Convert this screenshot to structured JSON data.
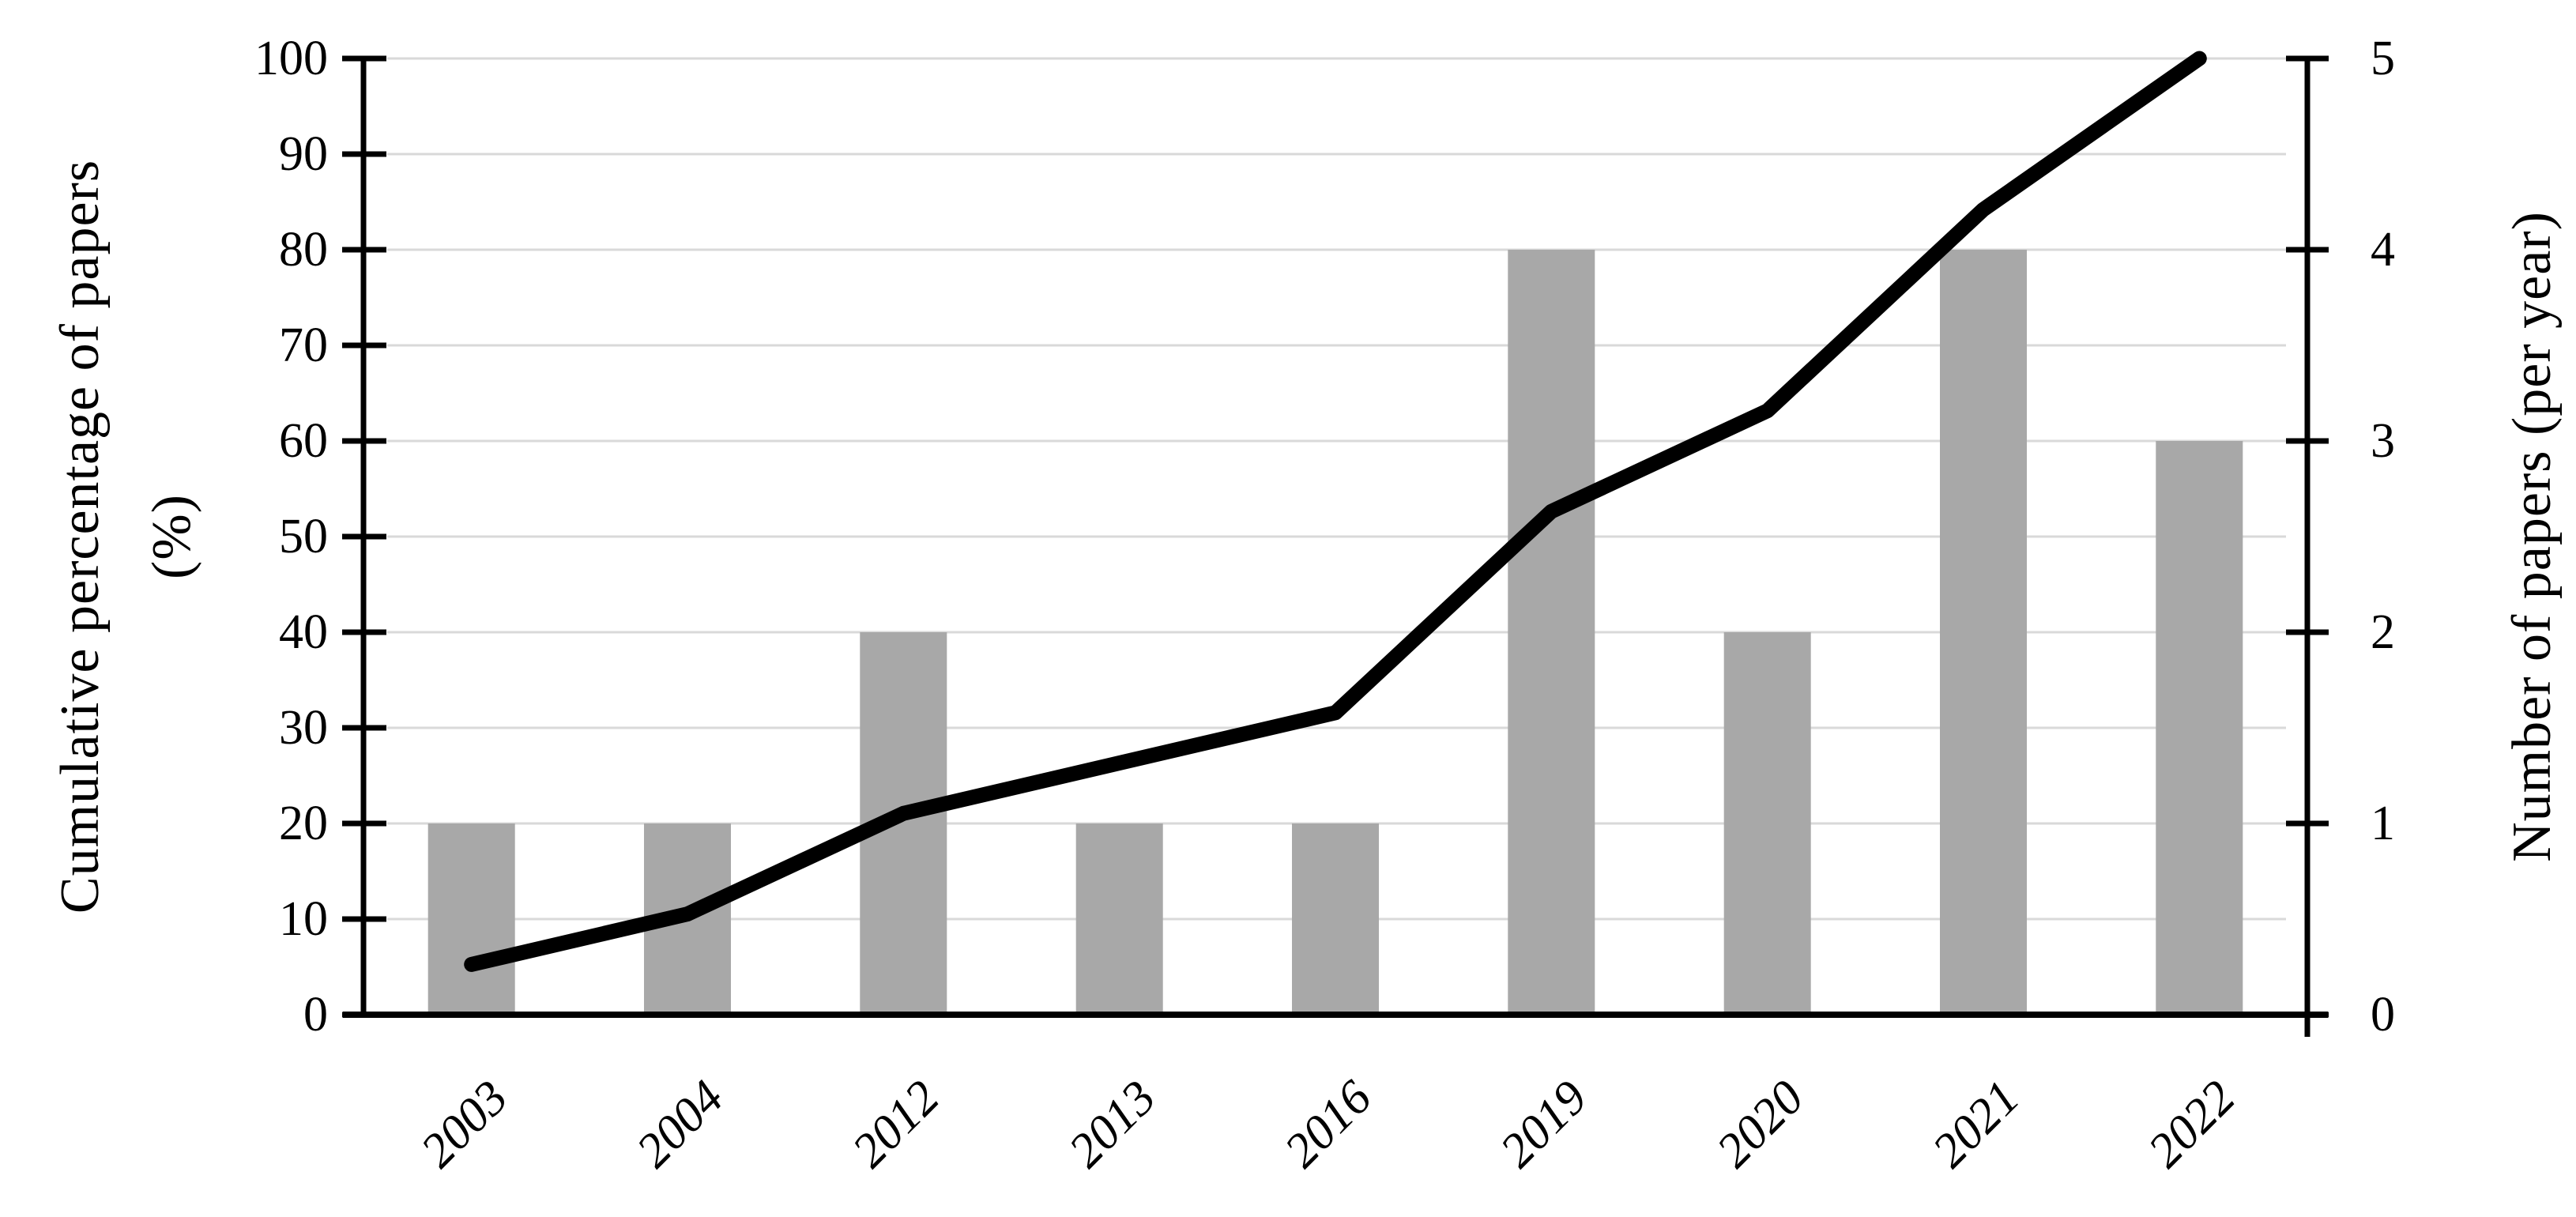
{
  "chart": {
    "background": "#ffffff",
    "left_axis": {
      "title": "Cumulative percentage of papers",
      "title_unit": "(%)",
      "tick_labels": [
        "0",
        "10",
        "20",
        "30",
        "40",
        "50",
        "60",
        "70",
        "80",
        "90",
        "100"
      ]
    },
    "right_axis": {
      "title": "Number of papers (per year)",
      "tick_labels": [
        "0",
        "1",
        "2",
        "3",
        "4",
        "5"
      ]
    },
    "colors": {
      "bar": "#a8a8a8",
      "line": "#000000",
      "gridline": "#d9d9d9",
      "axis": "#000000",
      "text": "#000000"
    }
  },
  "chart_data": {
    "type": "bar+line",
    "title": "",
    "legend": "none",
    "categories": [
      "2003",
      "2004",
      "2012",
      "2013",
      "2016",
      "2019",
      "2020",
      "2021",
      "2022"
    ],
    "series": [
      {
        "name": "Number of papers (per year)",
        "type": "bar",
        "axis": "right",
        "color": "#a8a8a8",
        "values": [
          1,
          1,
          2,
          1,
          1,
          4,
          2,
          4,
          3
        ]
      },
      {
        "name": "Cumulative percentage of papers (%)",
        "type": "line",
        "axis": "left",
        "color": "#000000",
        "values": [
          5.26,
          10.53,
          21.05,
          26.32,
          31.58,
          52.63,
          63.16,
          84.21,
          100
        ]
      }
    ],
    "left_ylabel": "Cumulative percentage of papers (%)",
    "right_ylabel": "Number of papers (per year)",
    "left_ylim": [
      0,
      100
    ],
    "right_ylim": [
      0,
      5
    ],
    "left_tick_step": 10,
    "right_tick_step": 1,
    "grid": "horizontal gridlines at every 10% (light gray)",
    "x_tick_rotation_deg": 45
  }
}
